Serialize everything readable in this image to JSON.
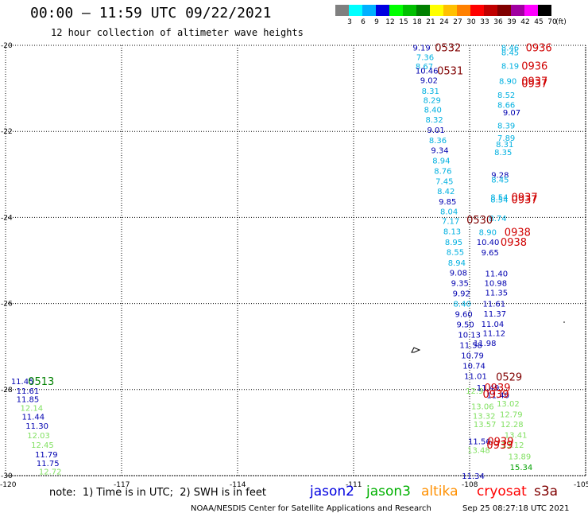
{
  "header": {
    "title": "00:00 – 11:59 UTC 09/22/2021",
    "subtitle": "12 hour collection of altimeter wave heights"
  },
  "color_scale": {
    "unit": "(ft)",
    "steps": [
      {
        "label": "3",
        "color": "#808080"
      },
      {
        "label": "6",
        "color": "#00ffff"
      },
      {
        "label": "9",
        "color": "#00b0ff"
      },
      {
        "label": "12",
        "color": "#0000e0"
      },
      {
        "label": "15",
        "color": "#00ff00"
      },
      {
        "label": "18",
        "color": "#00c000"
      },
      {
        "label": "21",
        "color": "#008000"
      },
      {
        "label": "24",
        "color": "#ffff00"
      },
      {
        "label": "27",
        "color": "#ffc000"
      },
      {
        "label": "30",
        "color": "#ff8000"
      },
      {
        "label": "33",
        "color": "#ff0000"
      },
      {
        "label": "36",
        "color": "#c00000"
      },
      {
        "label": "39",
        "color": "#800000"
      },
      {
        "label": "42",
        "color": "#a000a0"
      },
      {
        "label": "45",
        "color": "#ff00ff"
      },
      {
        "label": "70",
        "color": "#000000"
      }
    ]
  },
  "map": {
    "lat_labels": [
      {
        "value": -20,
        "text": "-20"
      },
      {
        "value": -22,
        "text": "-22"
      },
      {
        "value": -24,
        "text": "-24"
      },
      {
        "value": -26,
        "text": "-26"
      },
      {
        "value": -28,
        "text": "-28"
      },
      {
        "value": -30,
        "text": "-30"
      }
    ],
    "lon_labels": [
      {
        "value": -120,
        "text": "-120"
      },
      {
        "value": -117,
        "text": "-117"
      },
      {
        "value": -114,
        "text": "-114"
      },
      {
        "value": -111,
        "text": "-111"
      },
      {
        "value": -108,
        "text": "-108"
      },
      {
        "value": -105,
        "text": "-105"
      }
    ],
    "lat_range": [
      -30,
      -20
    ],
    "lon_range": [
      -120,
      -105
    ],
    "grid": "dotted"
  },
  "wave_heights": [
    {
      "lon": -109.47,
      "lat": -20.05,
      "text": "9.19",
      "color": "#0000b0"
    },
    {
      "lon": -109.38,
      "lat": -20.27,
      "text": "7.36",
      "color": "#00b0e0"
    },
    {
      "lon": -109.4,
      "lat": -20.48,
      "text": "8.67",
      "color": "#00b0e0"
    },
    {
      "lon": -109.4,
      "lat": -20.58,
      "text": "10.46",
      "color": "#0000b0"
    },
    {
      "lon": -109.28,
      "lat": -20.8,
      "text": "9.02",
      "color": "#0000b0"
    },
    {
      "lon": -109.24,
      "lat": -21.05,
      "text": "8.31",
      "color": "#00b0e0"
    },
    {
      "lon": -109.2,
      "lat": -21.27,
      "text": "8.29",
      "color": "#00b0e0"
    },
    {
      "lon": -109.18,
      "lat": -21.49,
      "text": "8.40",
      "color": "#00b0e0"
    },
    {
      "lon": -109.14,
      "lat": -21.72,
      "text": "8.32",
      "color": "#00b0e0"
    },
    {
      "lon": -109.1,
      "lat": -21.96,
      "text": "9.01",
      "color": "#0000b0"
    },
    {
      "lon": -109.05,
      "lat": -22.2,
      "text": "8.36",
      "color": "#00b0e0"
    },
    {
      "lon": -109.0,
      "lat": -22.43,
      "text": "9.34",
      "color": "#0000b0"
    },
    {
      "lon": -108.96,
      "lat": -22.67,
      "text": "8.94",
      "color": "#00b0e0"
    },
    {
      "lon": -108.92,
      "lat": -22.91,
      "text": "8.76",
      "color": "#00b0e0"
    },
    {
      "lon": -108.88,
      "lat": -23.15,
      "text": "7.45",
      "color": "#00b0e0"
    },
    {
      "lon": -108.84,
      "lat": -23.38,
      "text": "8.42",
      "color": "#00b0e0"
    },
    {
      "lon": -108.8,
      "lat": -23.62,
      "text": "9.85",
      "color": "#0000b0"
    },
    {
      "lon": -108.76,
      "lat": -23.85,
      "text": "8.04",
      "color": "#00b0e0"
    },
    {
      "lon": -108.72,
      "lat": -24.08,
      "text": "7.17",
      "color": "#00b0e0"
    },
    {
      "lon": -108.68,
      "lat": -24.32,
      "text": "8.13",
      "color": "#00b0e0"
    },
    {
      "lon": -108.64,
      "lat": -24.57,
      "text": "8.95",
      "color": "#00b0e0"
    },
    {
      "lon": -108.6,
      "lat": -24.8,
      "text": "8.55",
      "color": "#00b0e0"
    },
    {
      "lon": -108.56,
      "lat": -25.05,
      "text": "8.94",
      "color": "#00b0e0"
    },
    {
      "lon": -108.52,
      "lat": -25.28,
      "text": "9.08",
      "color": "#0000b0"
    },
    {
      "lon": -108.48,
      "lat": -25.52,
      "text": "9.35",
      "color": "#0000b0"
    },
    {
      "lon": -108.44,
      "lat": -25.76,
      "text": "9.92",
      "color": "#0000b0"
    },
    {
      "lon": -108.42,
      "lat": -26.0,
      "text": "8.40",
      "color": "#00b0e0"
    },
    {
      "lon": -108.38,
      "lat": -26.24,
      "text": "9.60",
      "color": "#0000b0"
    },
    {
      "lon": -108.34,
      "lat": -26.48,
      "text": "9.50",
      "color": "#0000b0"
    },
    {
      "lon": -108.3,
      "lat": -26.72,
      "text": "10.13",
      "color": "#0000b0"
    },
    {
      "lon": -108.26,
      "lat": -26.96,
      "text": "11.58",
      "color": "#0000b0"
    },
    {
      "lon": -108.22,
      "lat": -27.2,
      "text": "10.79",
      "color": "#0000b0"
    },
    {
      "lon": -108.18,
      "lat": -27.44,
      "text": "10.74",
      "color": "#0000b0"
    },
    {
      "lon": -108.14,
      "lat": -27.68,
      "text": "11.01",
      "color": "#0000b0"
    },
    {
      "lon": -108.1,
      "lat": -28.02,
      "text": "12.9",
      "color": "#80e060"
    },
    {
      "lon": -107.96,
      "lat": -28.38,
      "text": "13.06",
      "color": "#80e060"
    },
    {
      "lon": -107.92,
      "lat": -28.6,
      "text": "13.32",
      "color": "#80e060"
    },
    {
      "lon": -107.9,
      "lat": -28.8,
      "text": "13.57",
      "color": "#80e060"
    },
    {
      "lon": -108.04,
      "lat": -29.2,
      "text": "11.56",
      "color": "#0000b0"
    },
    {
      "lon": -108.06,
      "lat": -29.4,
      "text": "13.48",
      "color": "#80e060"
    },
    {
      "lon": -108.2,
      "lat": -30.0,
      "text": "11.34",
      "color": "#0000b0"
    },
    {
      "lon": -107.6,
      "lat": -25.3,
      "text": "11.40",
      "color": "#0000b0"
    },
    {
      "lon": -107.62,
      "lat": -25.52,
      "text": "10.98",
      "color": "#0000b0"
    },
    {
      "lon": -107.6,
      "lat": -25.74,
      "text": "11.35",
      "color": "#0000b0"
    },
    {
      "lon": -107.66,
      "lat": -26.0,
      "text": "11.61",
      "color": "#0000b0"
    },
    {
      "lon": -107.64,
      "lat": -26.23,
      "text": "11.37",
      "color": "#0000b0"
    },
    {
      "lon": -107.7,
      "lat": -26.47,
      "text": "11.04",
      "color": "#0000b0"
    },
    {
      "lon": -107.66,
      "lat": -26.68,
      "text": "11.12",
      "color": "#0000b0"
    },
    {
      "lon": -107.9,
      "lat": -26.91,
      "text": "11.98",
      "color": "#0000b0"
    },
    {
      "lon": -107.82,
      "lat": -27.95,
      "text": "11.49",
      "color": "#0000b0"
    },
    {
      "lon": -107.56,
      "lat": -28.12,
      "text": "11.40",
      "color": "#0000b0"
    },
    {
      "lon": -107.3,
      "lat": -28.32,
      "text": "13.02",
      "color": "#80e060"
    },
    {
      "lon": -107.22,
      "lat": -28.57,
      "text": "12.79",
      "color": "#80e060"
    },
    {
      "lon": -107.2,
      "lat": -28.8,
      "text": "12.28",
      "color": "#80e060"
    },
    {
      "lon": -107.1,
      "lat": -29.05,
      "text": "13.41",
      "color": "#80e060"
    },
    {
      "lon": -107.18,
      "lat": -29.28,
      "text": "13.12",
      "color": "#80e060"
    },
    {
      "lon": -107.0,
      "lat": -29.55,
      "text": "13.89",
      "color": "#80e060"
    },
    {
      "lon": -106.96,
      "lat": -29.8,
      "text": "15.34",
      "color": "#00a000"
    },
    {
      "lon": -107.18,
      "lat": -20.05,
      "text": "8.46",
      "color": "#00b0e0"
    },
    {
      "lon": -107.18,
      "lat": -20.16,
      "text": "8.45",
      "color": "#00b0e0"
    },
    {
      "lon": -107.18,
      "lat": -20.47,
      "text": "8.19",
      "color": "#00b0e0"
    },
    {
      "lon": -107.24,
      "lat": -20.82,
      "text": "8.90",
      "color": "#00b0e0"
    },
    {
      "lon": -107.28,
      "lat": -21.15,
      "text": "8.52",
      "color": "#00b0e0"
    },
    {
      "lon": -107.28,
      "lat": -21.38,
      "text": "8.66",
      "color": "#00b0e0"
    },
    {
      "lon": -107.14,
      "lat": -21.55,
      "text": "9.07",
      "color": "#0000b0"
    },
    {
      "lon": -107.28,
      "lat": -21.86,
      "text": "8.39",
      "color": "#00b0e0"
    },
    {
      "lon": -107.28,
      "lat": -22.14,
      "text": "7.89",
      "color": "#00b0e0"
    },
    {
      "lon": -107.32,
      "lat": -22.29,
      "text": "8.31",
      "color": "#00b0e0"
    },
    {
      "lon": -107.36,
      "lat": -22.48,
      "text": "8.35",
      "color": "#00b0e0"
    },
    {
      "lon": -107.44,
      "lat": -23.0,
      "text": "9.28",
      "color": "#0000b0"
    },
    {
      "lon": -107.44,
      "lat": -23.11,
      "text": "8.45",
      "color": "#00b0e0"
    },
    {
      "lon": -107.46,
      "lat": -23.52,
      "text": "8.54",
      "color": "#00b0e0"
    },
    {
      "lon": -107.46,
      "lat": -23.58,
      "text": "8.54",
      "color": "#00b0e0"
    },
    {
      "lon": -107.5,
      "lat": -24.01,
      "text": "8.74",
      "color": "#00b0e0"
    },
    {
      "lon": -107.76,
      "lat": -24.33,
      "text": "8.90",
      "color": "#00b0e0"
    },
    {
      "lon": -107.82,
      "lat": -24.57,
      "text": "10.40",
      "color": "#0000b0"
    },
    {
      "lon": -107.7,
      "lat": -24.81,
      "text": "9.65",
      "color": "#0000b0"
    },
    {
      "lon": -119.86,
      "lat": -27.8,
      "text": "11.45",
      "color": "#0000b0"
    },
    {
      "lon": -119.72,
      "lat": -28.02,
      "text": "11.61",
      "color": "#0000b0"
    },
    {
      "lon": -119.72,
      "lat": -28.22,
      "text": "11.85",
      "color": "#0000b0"
    },
    {
      "lon": -119.62,
      "lat": -28.42,
      "text": "12.14",
      "color": "#80e060"
    },
    {
      "lon": -119.58,
      "lat": -28.62,
      "text": "11.44",
      "color": "#0000b0"
    },
    {
      "lon": -119.48,
      "lat": -28.84,
      "text": "11.30",
      "color": "#0000b0"
    },
    {
      "lon": -119.44,
      "lat": -29.06,
      "text": "12.03",
      "color": "#80e060"
    },
    {
      "lon": -119.34,
      "lat": -29.28,
      "text": "12.45",
      "color": "#80e060"
    },
    {
      "lon": -119.24,
      "lat": -29.5,
      "text": "11.79",
      "color": "#0000b0"
    },
    {
      "lon": -119.2,
      "lat": -29.7,
      "text": "11.75",
      "color": "#0000b0"
    },
    {
      "lon": -119.14,
      "lat": -29.9,
      "text": "12.72",
      "color": "#80e060"
    }
  ],
  "time_labels": [
    {
      "lon": -108.9,
      "lat": -20.05,
      "text": "0532",
      "color": "#800000"
    },
    {
      "lon": -108.84,
      "lat": -20.58,
      "text": "0531",
      "color": "#800000"
    },
    {
      "lon": -108.08,
      "lat": -24.05,
      "text": "0530",
      "color": "#800000"
    },
    {
      "lon": -119.42,
      "lat": -27.8,
      "text": "0513",
      "color": "#008000"
    },
    {
      "lon": -107.32,
      "lat": -27.7,
      "text": "0529",
      "color": "#800000"
    },
    {
      "lon": -106.55,
      "lat": -20.05,
      "text": "0936",
      "color": "#d00000"
    },
    {
      "lon": -106.66,
      "lat": -20.47,
      "text": "0936",
      "color": "#d00000"
    },
    {
      "lon": -106.66,
      "lat": -20.82,
      "text": "0937",
      "color": "#d00000"
    },
    {
      "lon": -106.66,
      "lat": -20.88,
      "text": "0937",
      "color": "#d00000"
    },
    {
      "lon": -106.92,
      "lat": -23.52,
      "text": "0937",
      "color": "#d00000"
    },
    {
      "lon": -106.92,
      "lat": -23.58,
      "text": "0937",
      "color": "#d00000"
    },
    {
      "lon": -107.1,
      "lat": -24.33,
      "text": "0938",
      "color": "#d00000"
    },
    {
      "lon": -107.2,
      "lat": -24.57,
      "text": "0938",
      "color": "#d00000"
    },
    {
      "lon": -107.62,
      "lat": -27.95,
      "text": "0939",
      "color": "#d00000"
    },
    {
      "lon": -107.66,
      "lat": -28.1,
      "text": "0939",
      "color": "#d00000"
    },
    {
      "lon": -107.54,
      "lat": -29.2,
      "text": "0939",
      "color": "#d00000"
    },
    {
      "lon": -107.56,
      "lat": -29.28,
      "text": "0939",
      "color": "#d00000"
    }
  ],
  "footer": {
    "note": "note:  1) Time is in UTC;  2) SWH is in feet",
    "satellites": [
      {
        "name": "jason2",
        "color": "#0000e0"
      },
      {
        "name": "jason3",
        "color": "#00b000"
      },
      {
        "name": "altika",
        "color": "#ff9000"
      },
      {
        "name": "cryosat",
        "color": "#ff0000"
      },
      {
        "name": "s3a",
        "color": "#800000"
      }
    ],
    "credit": "NOAA/NESDIS Center for Satellite Applications and Research",
    "timestamp": "Sep 25 08:27:18 UTC 2021"
  }
}
